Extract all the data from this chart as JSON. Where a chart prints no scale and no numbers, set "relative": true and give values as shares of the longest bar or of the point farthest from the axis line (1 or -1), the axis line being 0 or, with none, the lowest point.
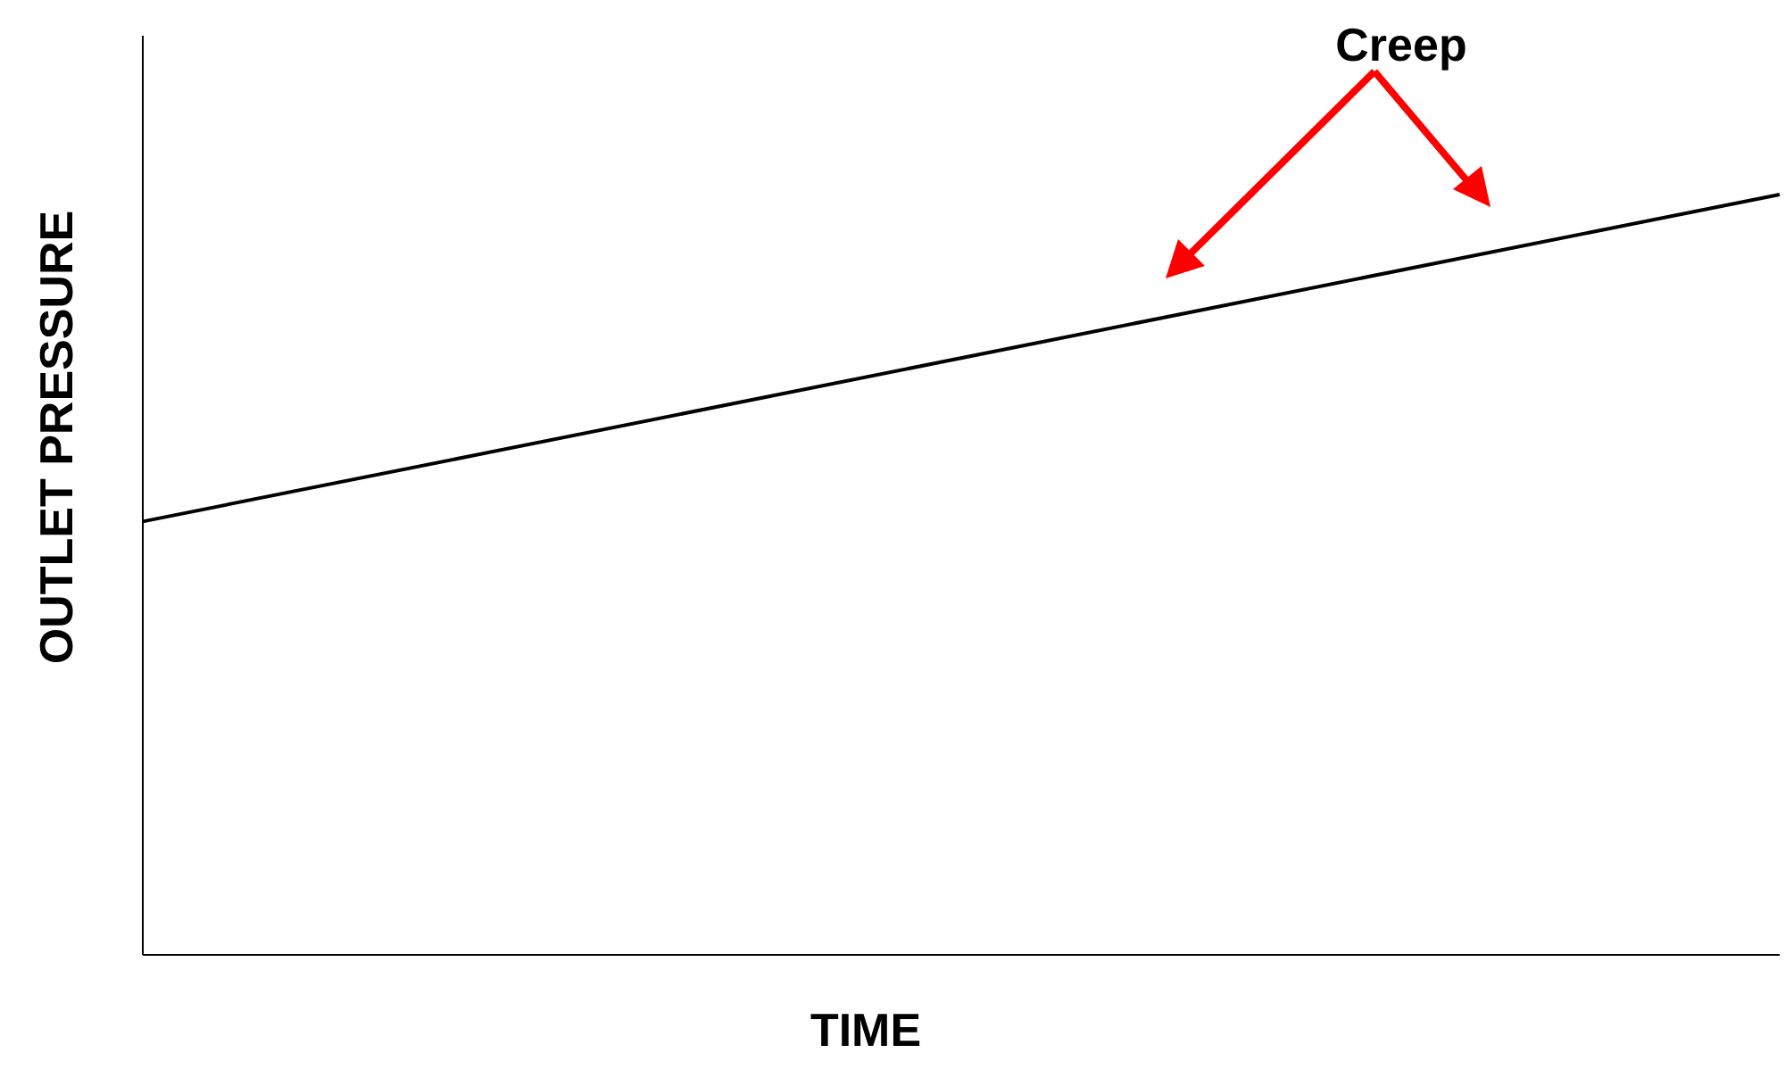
{
  "chart_data": {
    "type": "line",
    "xlabel": "TIME",
    "ylabel": "OUTLET PRESSURE",
    "annotations": [
      "Creep"
    ],
    "relative": true,
    "categories": [
      null,
      null
    ],
    "series": [
      {
        "color": "#000000",
        "values": [
          0.57,
          1
        ]
      }
    ]
  }
}
